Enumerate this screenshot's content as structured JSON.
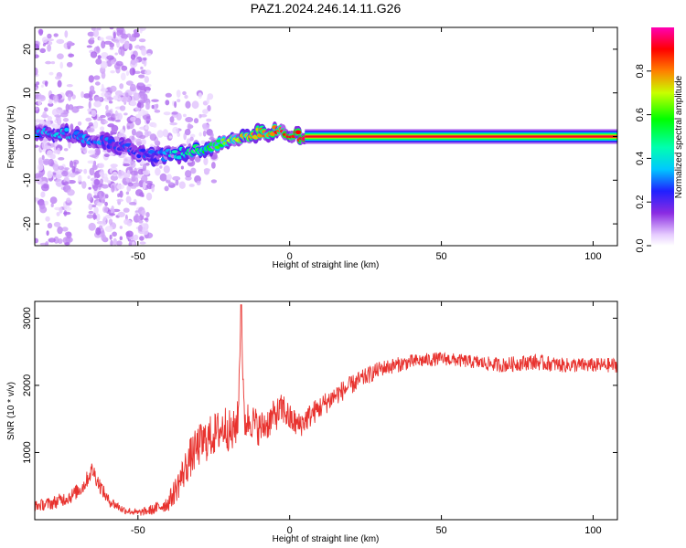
{
  "title": "PAZ1.2024.246.14.11.G26",
  "chart_data": [
    {
      "type": "heatmap",
      "title": "PAZ1.2024.246.14.11.G26",
      "xlabel": "Height of straight line (km)",
      "ylabel": "Frequency (Hz)",
      "xlim": [
        -84,
        108
      ],
      "ylim": [
        -25,
        25
      ],
      "xticks": [
        -50,
        0,
        50,
        100
      ],
      "yticks": [
        -20,
        -10,
        0,
        10,
        20
      ],
      "colorbar": {
        "label": "Normalized spectral amplitude",
        "range": [
          0.0,
          1.0
        ],
        "ticks": [
          0.0,
          0.2,
          0.4,
          0.6,
          0.8
        ],
        "colormap": "rainbow (white to purple to blue to cyan to green to yellow to red to magenta)"
      },
      "ridge": {
        "description": "dominant frequency track vs height",
        "x": [
          -84,
          -75,
          -65,
          -55,
          -45,
          -38,
          -30,
          -22,
          -15,
          -8,
          -3,
          0,
          5,
          20,
          50,
          80,
          108
        ],
        "y": [
          0.5,
          0.8,
          -0.5,
          -2.5,
          -4.5,
          -4.0,
          -3.0,
          -1.5,
          0.0,
          1.0,
          1.5,
          0.5,
          0.0,
          0.0,
          0.0,
          0.0,
          0.0
        ],
        "amplitude": [
          0.3,
          0.35,
          0.3,
          0.25,
          0.25,
          0.4,
          0.5,
          0.6,
          0.75,
          0.8,
          0.85,
          0.9,
          0.95,
          0.95,
          0.95,
          0.95,
          0.95
        ]
      },
      "grid": false
    },
    {
      "type": "line",
      "xlabel": "Height of straight line (km)",
      "ylabel": "SNR (10 * v/v)",
      "xlim": [
        -84,
        108
      ],
      "ylim": [
        0,
        3250
      ],
      "xticks": [
        -50,
        0,
        50,
        100
      ],
      "yticks": [
        1000,
        2000,
        3000
      ],
      "color": "#e8322e",
      "series": [
        {
          "x": [
            -84,
            -78,
            -72,
            -68,
            -65,
            -63,
            -60,
            -55,
            -50,
            -45,
            -40,
            -37,
            -33,
            -30,
            -27,
            -24,
            -21,
            -19,
            -17,
            -16,
            -15,
            -13,
            -10,
            -7,
            -5,
            -2,
            0,
            3,
            8,
            15,
            22,
            30,
            40,
            50,
            60,
            70,
            80,
            90,
            100,
            108
          ],
          "y": [
            200,
            250,
            350,
            500,
            750,
            550,
            300,
            150,
            100,
            150,
            250,
            500,
            900,
            1100,
            1200,
            1300,
            1400,
            1250,
            1500,
            3200,
            1450,
            1500,
            1350,
            1450,
            1550,
            1650,
            1500,
            1400,
            1600,
            1850,
            2050,
            2250,
            2350,
            2400,
            2350,
            2300,
            2350,
            2300,
            2300,
            2300
          ],
          "noise": [
            80,
            100,
            110,
            120,
            130,
            120,
            90,
            60,
            50,
            80,
            130,
            220,
            300,
            320,
            330,
            320,
            330,
            320,
            300,
            0,
            300,
            280,
            260,
            250,
            240,
            250,
            220,
            200,
            180,
            160,
            140,
            120,
            110,
            100,
            100,
            110,
            120,
            110,
            110,
            110
          ]
        }
      ],
      "grid": false
    }
  ]
}
